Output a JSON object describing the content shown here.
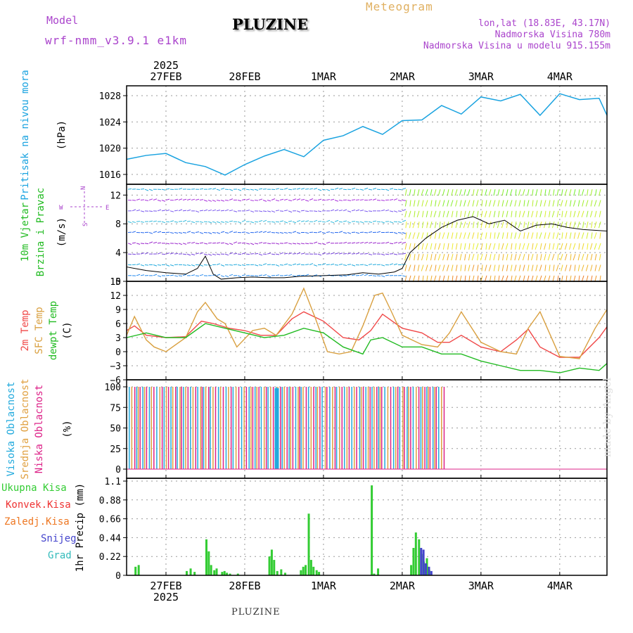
{
  "header": {
    "model_label": "Model",
    "model_name": "wrf-nmm_v3.9.1 e1km",
    "location_title": "PLUZINE",
    "chart_kind": "Meteogram",
    "coords": "lon,lat (18.83E, 43.17N)",
    "elevation": "Nadmorska Visina 780m",
    "model_elevation": "Nadmorska Visina u modelu 915.155m"
  },
  "footer": {
    "location": "PLUZINE",
    "credit": "made by Angel",
    "year_top": "2025",
    "year_bottom": "2025"
  },
  "colors": {
    "pressure": "#1aa3e0",
    "temp_2m": "#f04848",
    "temp_sfc": "#d9a040",
    "dewpoint": "#22bb22",
    "high_cloud": "#22aadd",
    "mid_cloud": "#e0a040",
    "low_cloud": "#dd2288",
    "precip_total": "#33cc33",
    "precip_conv": "#ee3333",
    "precip_freez": "#ee7722",
    "precip_snow": "#4444cc",
    "precip_hail": "#33bbbb",
    "label_purple": "#aa44cc",
    "label_gold": "#e0b060"
  },
  "chart_data": {
    "type": "line",
    "x_ticks": [
      "27FEB",
      "28FEB",
      "1MAR",
      "2MAR",
      "3MAR",
      "4MAR"
    ],
    "x_tick_days": [
      0.5,
      1.5,
      2.5,
      3.5,
      4.5,
      5.5
    ],
    "x_range_days": [
      0,
      6.1
    ],
    "panels": [
      {
        "id": "pressure",
        "type": "line",
        "ylabel_main": "Pritisak na nivou mora",
        "ylabel_unit": "(hPa)",
        "ylim": [
          1014.5,
          1029.5
        ],
        "yticks": [
          1016,
          1020,
          1024,
          1028
        ],
        "series": [
          {
            "name": "Pritisak na nivou mora",
            "x": [
              0,
              0.25,
              0.5,
              0.75,
              1.0,
              1.25,
              1.5,
              1.75,
              2.0,
              2.25,
              2.5,
              2.75,
              3.0,
              3.25,
              3.5,
              3.75,
              4.0,
              4.25,
              4.5,
              4.75,
              5.0,
              5.25,
              5.5,
              5.75,
              6.0,
              6.1
            ],
            "values": [
              1018.3,
              1018.9,
              1019.2,
              1017.8,
              1017.2,
              1015.9,
              1017.5,
              1018.8,
              1019.8,
              1018.7,
              1021.2,
              1021.9,
              1023.3,
              1022.1,
              1024.2,
              1024.3,
              1026.5,
              1025.2,
              1027.8,
              1027.2,
              1028.2,
              1025.0,
              1028.3,
              1027.4,
              1027.6,
              1025.0
            ]
          }
        ]
      },
      {
        "id": "wind",
        "type": "line",
        "ylabel_main": "10m Vjetar",
        "ylabel_sub": "Brzina i Pravac",
        "ylabel_unit": "(m/s)",
        "compass": [
          "N",
          "W",
          "E",
          "S"
        ],
        "ylim": [
          0,
          13.5
        ],
        "yticks": [
          0,
          4,
          8,
          12
        ],
        "series": [
          {
            "name": "10m Vjetar",
            "x": [
              0,
              0.25,
              0.5,
              0.75,
              0.9,
              1.0,
              1.1,
              1.2,
              1.4,
              1.6,
              1.8,
              2.0,
              2.2,
              2.5,
              2.8,
              3.0,
              3.2,
              3.4,
              3.5,
              3.6,
              3.8,
              4.0,
              4.2,
              4.4,
              4.6,
              4.8,
              5.0,
              5.2,
              5.4,
              5.6,
              5.8,
              6.1
            ],
            "values": [
              2.0,
              1.5,
              1.2,
              1.0,
              1.8,
              3.5,
              1.0,
              0.3,
              0.5,
              0.6,
              0.5,
              0.5,
              0.7,
              0.8,
              0.9,
              1.2,
              1.0,
              1.3,
              1.8,
              4.0,
              6.0,
              7.5,
              8.5,
              9.0,
              8.0,
              8.5,
              7.0,
              7.8,
              8.0,
              7.5,
              7.2,
              7.0
            ]
          }
        ]
      },
      {
        "id": "temperature",
        "type": "line",
        "ylabel_main": "2m Temp",
        "ylabel_sub": "SFC Temp",
        "ylabel_sub2": "dewpt Temp",
        "ylabel_unit": "(C)",
        "ylim": [
          -6,
          15
        ],
        "yticks": [
          -6,
          -3,
          0,
          3,
          6,
          9,
          12,
          15
        ],
        "series": [
          {
            "name": "2m Temp",
            "x": [
              0,
              0.1,
              0.25,
              0.5,
              0.75,
              0.95,
              1.1,
              1.3,
              1.5,
              1.7,
              1.9,
              2.1,
              2.25,
              2.5,
              2.75,
              2.95,
              3.1,
              3.25,
              3.5,
              3.75,
              3.95,
              4.1,
              4.25,
              4.5,
              4.75,
              4.95,
              5.1,
              5.25,
              5.5,
              5.75,
              6.0,
              6.1
            ],
            "values": [
              4.5,
              5.5,
              3.5,
              3.0,
              3.2,
              6.5,
              6.0,
              5.0,
              4.5,
              3.5,
              3.5,
              7.0,
              8.5,
              6.5,
              3.0,
              2.5,
              4.5,
              8.0,
              5.0,
              4.0,
              2.0,
              2.0,
              3.5,
              1.0,
              0.0,
              2.5,
              4.8,
              1.0,
              -1.2,
              -1.2,
              3.0,
              5.3
            ]
          },
          {
            "name": "SFC Temp",
            "x": [
              0,
              0.1,
              0.25,
              0.35,
              0.5,
              0.75,
              0.9,
              1.0,
              1.15,
              1.25,
              1.4,
              1.6,
              1.75,
              1.9,
              2.1,
              2.25,
              2.4,
              2.55,
              2.7,
              2.85,
              3.0,
              3.15,
              3.25,
              3.35,
              3.5,
              3.75,
              3.95,
              4.1,
              4.25,
              4.5,
              4.75,
              4.95,
              5.1,
              5.25,
              5.5,
              5.75,
              5.95,
              6.1
            ],
            "values": [
              3.5,
              7.5,
              2.5,
              1.0,
              0.0,
              3.0,
              8.5,
              10.5,
              7.0,
              6.0,
              1.0,
              4.5,
              5.0,
              3.5,
              8.0,
              13.5,
              7.0,
              0.0,
              -0.5,
              0.0,
              5.5,
              12.0,
              12.5,
              9.0,
              3.5,
              1.5,
              1.0,
              4.0,
              8.5,
              2.0,
              0.0,
              -0.5,
              5.0,
              8.5,
              -1.0,
              -1.5,
              5.0,
              9.0
            ]
          },
          {
            "name": "dewpt Temp",
            "x": [
              0,
              0.25,
              0.5,
              0.75,
              1.0,
              1.25,
              1.5,
              1.75,
              2.0,
              2.25,
              2.5,
              2.75,
              3.0,
              3.1,
              3.25,
              3.5,
              3.75,
              4.0,
              4.25,
              4.5,
              4.75,
              5.0,
              5.25,
              5.5,
              5.75,
              6.0,
              6.1
            ],
            "values": [
              3.0,
              4.0,
              3.0,
              3.0,
              6.0,
              5.0,
              4.0,
              3.0,
              3.5,
              5.0,
              4.0,
              1.0,
              -0.5,
              2.5,
              3.0,
              1.0,
              1.0,
              -0.5,
              -0.5,
              -2.0,
              -3.0,
              -4.0,
              -4.0,
              -4.5,
              -3.5,
              -4.0,
              -2.5
            ]
          }
        ]
      },
      {
        "id": "clouds",
        "type": "bar",
        "ylabel_main": "Visoka Oblacnost",
        "ylabel_sub": "Srednja Oblacnost",
        "ylabel_sub2": "Niska Oblacnost",
        "ylabel_unit": "(%)",
        "ylim": [
          0,
          100
        ],
        "yticks": [
          0,
          25,
          50,
          75,
          100
        ],
        "cloud_end_day": 4.05,
        "series": [
          {
            "name": "Visoka Oblacnost",
            "value": 100
          },
          {
            "name": "Srednja Oblacnost",
            "value": 100
          },
          {
            "name": "Niska Oblacnost",
            "value": 100
          }
        ]
      },
      {
        "id": "precip",
        "type": "bar",
        "ylabel_main": "1hr Precip (mm)",
        "ylim": [
          0,
          1.1
        ],
        "yticks": [
          "0",
          "0.22",
          "0.44",
          "0.66",
          "0.88",
          "1.1"
        ],
        "ytick_values": [
          0,
          0.22,
          0.44,
          0.66,
          0.88,
          1.1
        ],
        "legend": [
          "Ukupna Kisa",
          "Konvek.Kisa",
          "Zaledj.Kisa",
          "Snijeg",
          "Grad"
        ],
        "series": [
          {
            "name": "Ukupna Kisa",
            "x": [
              0.1,
              0.14,
              0.75,
              0.8,
              0.85,
              1.0,
              1.03,
              1.06,
              1.1,
              1.13,
              1.2,
              1.23,
              1.26,
              1.3,
              1.4,
              1.8,
              1.83,
              1.86,
              1.9,
              1.95,
              2.0,
              2.2,
              2.23,
              2.26,
              2.3,
              2.33,
              2.36,
              2.4,
              2.43,
              3.1,
              3.13,
              3.18,
              3.6,
              3.63,
              3.66,
              3.7,
              3.73,
              3.76,
              3.8,
              3.83
            ],
            "values": [
              0.1,
              0.12,
              0.05,
              0.08,
              0.04,
              0.42,
              0.28,
              0.12,
              0.06,
              0.08,
              0.04,
              0.05,
              0.03,
              0.02,
              0.02,
              0.22,
              0.3,
              0.18,
              0.05,
              0.07,
              0.03,
              0.06,
              0.1,
              0.12,
              0.72,
              0.18,
              0.1,
              0.06,
              0.04,
              1.05,
              0.02,
              0.08,
              0.12,
              0.32,
              0.5,
              0.42,
              0.25,
              0.16,
              0.2,
              0.06
            ]
          },
          {
            "name": "Snijeg",
            "x": [
              3.7,
              3.73,
              3.76,
              3.8,
              3.83
            ],
            "values": [
              0.32,
              0.3,
              0.14,
              0.1,
              0.05
            ]
          }
        ]
      }
    ]
  }
}
